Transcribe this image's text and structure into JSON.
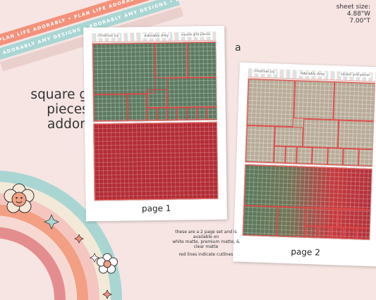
{
  "ribbons": {
    "r1": "PLAN LIFE ADORABLY • PLAN LIFE ADORABLY • PLAN LIFE ADORABLY",
    "r2": "ADORABLY AMY DESIGNS • ADORABLY AMY DESIGNS • ADORABLY AMY DESIGNS"
  },
  "sheet_size": {
    "label": "sheet size:",
    "width": "4.88\"W",
    "height": "7.00\"T"
  },
  "variant_letter": "a",
  "title": {
    "line1": "square grid",
    "line2": "pieces",
    "line3": "addon"
  },
  "page1": {
    "header_left": "christmas joy",
    "header_mid": "Adorably Amy",
    "header_right": "square grid pieces",
    "label": "page 1"
  },
  "page2": {
    "header_left": "christmas joy",
    "header_mid": "Adorably Amy",
    "header_right": "square grid pieces",
    "label": "page 2"
  },
  "info": {
    "line1": "these are a 2 page set and is available on",
    "line2": "white matte, premium matte, & clear matte",
    "line3": "red lines indicate cutlines"
  },
  "colors": {
    "background": "#f6e5e3",
    "green": "#5c7a60",
    "red": "#b32c35",
    "tan": "#b8ac99",
    "cutline": "#e04848"
  },
  "icons": [
    "rainbow-decoration",
    "smiley-flower-icon",
    "daisy-flower-icon",
    "sparkle-icon"
  ]
}
